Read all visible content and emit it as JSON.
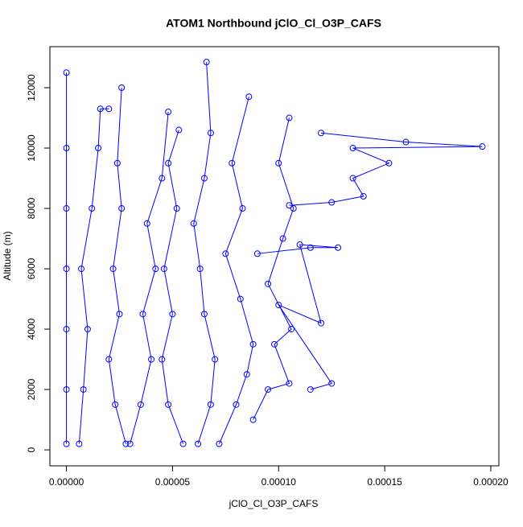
{
  "chart_data": {
    "type": "scatter",
    "title": "ATOM1 Northbound jClO_Cl_O3P_CAFS",
    "x_label": "jClO_Cl_O3P_CAFS",
    "y_label": "Altitude (m)",
    "xlim": [
      -7.8e-06,
      0.0002038
    ],
    "ylim": [
      -530,
      13360
    ],
    "xticks": [
      {
        "value": 0,
        "label": "0.00000"
      },
      {
        "value": 5e-05,
        "label": "0.00005"
      },
      {
        "value": 0.0001,
        "label": "0.00010"
      },
      {
        "value": 0.00015,
        "label": "0.00015"
      },
      {
        "value": 0.0002,
        "label": "0.00020"
      }
    ],
    "yticks": [
      0,
      2000,
      4000,
      6000,
      8000,
      10000,
      12000
    ],
    "color": "#0000ff",
    "series": [
      {
        "x": [
          0,
          0,
          0,
          0,
          0,
          0,
          0
        ],
        "values": [
          200,
          2000,
          4000,
          6000,
          8000,
          10000,
          12500
        ]
      },
      {
        "x": [
          6e-06,
          8e-06,
          1e-05,
          7e-06,
          1.2e-05,
          1.5e-05,
          1.6e-05,
          2e-05
        ],
        "values": [
          200,
          2000,
          4000,
          6000,
          8000,
          10000,
          11300,
          11300
        ]
      },
      {
        "x": [
          2.8e-05,
          2.3e-05,
          2e-05,
          2.5e-05,
          2.2e-05,
          2.6e-05,
          2.4e-05,
          2.6e-05
        ],
        "values": [
          200,
          1500,
          3000,
          4500,
          6000,
          8000,
          9500,
          12000
        ]
      },
      {
        "x": [
          3e-05,
          3.5e-05,
          4e-05,
          3.6e-05,
          4.2e-05,
          3.8e-05,
          4.5e-05,
          4.8e-05
        ],
        "values": [
          200,
          1500,
          3000,
          4500,
          6000,
          7500,
          9000,
          11200
        ]
      },
      {
        "x": [
          5.5e-05,
          4.8e-05,
          4.5e-05,
          5e-05,
          4.6e-05,
          5.2e-05,
          4.8e-05,
          5.3e-05
        ],
        "values": [
          200,
          1500,
          3000,
          4500,
          6000,
          8000,
          9500,
          10600
        ]
      },
      {
        "x": [
          6.2e-05,
          6.8e-05,
          7e-05,
          6.5e-05,
          6.3e-05,
          6e-05,
          6.5e-05,
          6.8e-05,
          6.6e-05
        ],
        "values": [
          200,
          1500,
          3000,
          4500,
          6000,
          7500,
          9000,
          10500,
          12850
        ]
      },
      {
        "x": [
          7.2e-05,
          8e-05,
          8.5e-05,
          8.8e-05,
          8.2e-05,
          7.5e-05,
          8.3e-05,
          7.8e-05,
          8.6e-05
        ],
        "values": [
          200,
          1500,
          2500,
          3500,
          5000,
          6500,
          8000,
          9500,
          11700
        ]
      },
      {
        "x": [
          8.8e-05,
          9.5e-05,
          0.000105,
          9.8e-05,
          0.000106,
          9.5e-05,
          0.000102,
          0.000107,
          0.0001,
          0.000105
        ],
        "values": [
          1000,
          2000,
          2200,
          3500,
          4000,
          5500,
          7000,
          8000,
          9500,
          11000
        ]
      },
      {
        "x": [
          0.000105,
          0.000125,
          0.00014,
          0.000135,
          0.000152,
          0.000135,
          0.000196,
          0.00016,
          0.00012
        ],
        "values": [
          8100,
          8200,
          8400,
          9000,
          9500,
          10000,
          10050,
          10200,
          10500
        ]
      },
      {
        "x": [
          9e-05,
          0.000115,
          0.000128,
          0.00011,
          0.00012,
          0.0001,
          0.000125,
          0.000115
        ],
        "values": [
          6500,
          6700,
          6700,
          6800,
          4200,
          4800,
          2200,
          2000
        ]
      }
    ]
  }
}
